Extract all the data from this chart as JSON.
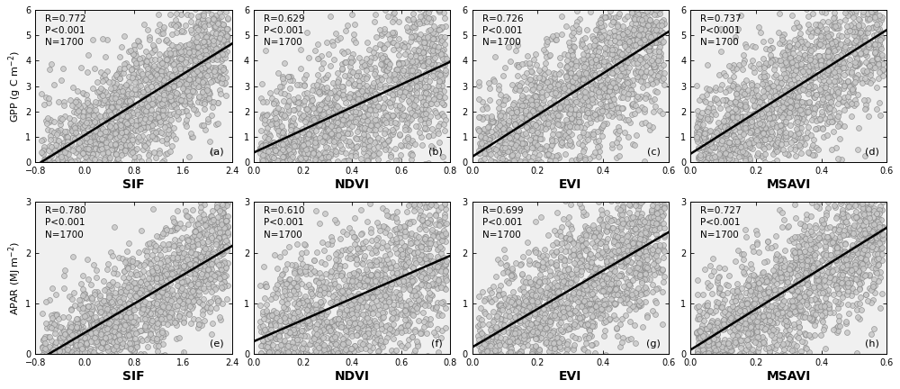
{
  "panels": [
    {
      "row": 0,
      "col": 0,
      "xlabel": "SIF",
      "ylabel": "GPP (g C m$^{-2}$)",
      "R": 0.772,
      "xmin": -0.8,
      "xmax": 2.4,
      "ymin": 0,
      "ymax": 6,
      "label": "(a)",
      "N": 1700,
      "seed": 101,
      "xticks": [
        -0.8,
        0.0,
        0.8,
        1.6,
        2.4
      ],
      "yticks": [
        0,
        1,
        2,
        3,
        4,
        5,
        6
      ],
      "slope": 1.75,
      "intercept": 0.6
    },
    {
      "row": 0,
      "col": 1,
      "xlabel": "NDVI",
      "ylabel": "GPP (g C m$^{-2}$)",
      "R": 0.629,
      "xmin": 0.0,
      "xmax": 0.8,
      "ymin": 0,
      "ymax": 6,
      "label": "(b)",
      "N": 1700,
      "seed": 202,
      "xticks": [
        0.0,
        0.2,
        0.4,
        0.6,
        0.8
      ],
      "yticks": [
        0,
        1,
        2,
        3,
        4,
        5,
        6
      ],
      "slope": 5.8,
      "intercept": -0.5
    },
    {
      "row": 0,
      "col": 2,
      "xlabel": "EVI",
      "ylabel": "GPP (g C m$^{-2}$)",
      "R": 0.726,
      "xmin": 0.0,
      "xmax": 0.6,
      "ymin": 0,
      "ymax": 6,
      "label": "(c)",
      "N": 1700,
      "seed": 303,
      "xticks": [
        0.0,
        0.2,
        0.4,
        0.6
      ],
      "yticks": [
        0,
        1,
        2,
        3,
        4,
        5,
        6
      ],
      "slope": 9.5,
      "intercept": -0.3
    },
    {
      "row": 0,
      "col": 3,
      "xlabel": "MSAVI",
      "ylabel": "GPP (g C m$^{-2}$)",
      "R": 0.737,
      "xmin": 0.0,
      "xmax": 0.6,
      "ymin": 0,
      "ymax": 6,
      "label": "(d)",
      "N": 1700,
      "seed": 404,
      "xticks": [
        0.0,
        0.2,
        0.4,
        0.6
      ],
      "yticks": [
        0,
        1,
        2,
        3,
        4,
        5,
        6
      ],
      "slope": 9.8,
      "intercept": -0.3
    },
    {
      "row": 1,
      "col": 0,
      "xlabel": "SIF",
      "ylabel": "APAR (MJ m$^{-2}$)",
      "R": 0.78,
      "xmin": -0.8,
      "xmax": 2.4,
      "ymin": 0,
      "ymax": 3,
      "label": "(e)",
      "N": 1700,
      "seed": 505,
      "xticks": [
        -0.8,
        0.0,
        0.8,
        1.6,
        2.4
      ],
      "yticks": [
        0,
        1,
        2,
        3
      ],
      "slope": 0.8,
      "intercept": 0.25
    },
    {
      "row": 1,
      "col": 1,
      "xlabel": "NDVI",
      "ylabel": "APAR (MJ m$^{-2}$)",
      "R": 0.61,
      "xmin": 0.0,
      "xmax": 0.8,
      "ymin": 0,
      "ymax": 3,
      "label": "(f)",
      "N": 1700,
      "seed": 606,
      "xticks": [
        0.0,
        0.2,
        0.4,
        0.6,
        0.8
      ],
      "yticks": [
        0,
        1,
        2,
        3
      ],
      "slope": 2.8,
      "intercept": -0.2
    },
    {
      "row": 1,
      "col": 2,
      "xlabel": "EVI",
      "ylabel": "APAR (MJ m$^{-2}$)",
      "R": 0.699,
      "xmin": 0.0,
      "xmax": 0.6,
      "ymin": 0,
      "ymax": 3,
      "label": "(g)",
      "N": 1700,
      "seed": 707,
      "xticks": [
        0.0,
        0.2,
        0.4,
        0.6
      ],
      "yticks": [
        0,
        1,
        2,
        3
      ],
      "slope": 4.5,
      "intercept": -0.15
    },
    {
      "row": 1,
      "col": 3,
      "xlabel": "MSAVI",
      "ylabel": "APAR (MJ m$^{-2}$)",
      "R": 0.727,
      "xmin": 0.0,
      "xmax": 0.6,
      "ymin": 0,
      "ymax": 3,
      "label": "(h)",
      "N": 1700,
      "seed": 808,
      "xticks": [
        0.0,
        0.2,
        0.4,
        0.6
      ],
      "yticks": [
        0,
        1,
        2,
        3
      ],
      "slope": 4.6,
      "intercept": -0.15
    }
  ],
  "face_color": "#f0f0f0",
  "marker_face_color": "#c8c8c8",
  "marker_edge_color": "#888888",
  "marker_size": 18,
  "marker_edge_width": 0.5,
  "line_color": "black",
  "line_width": 1.8,
  "font_size": 8,
  "xlabel_font_size": 10,
  "ylabel_font_size": 8,
  "tick_font_size": 7,
  "stats_font_size": 7.5
}
